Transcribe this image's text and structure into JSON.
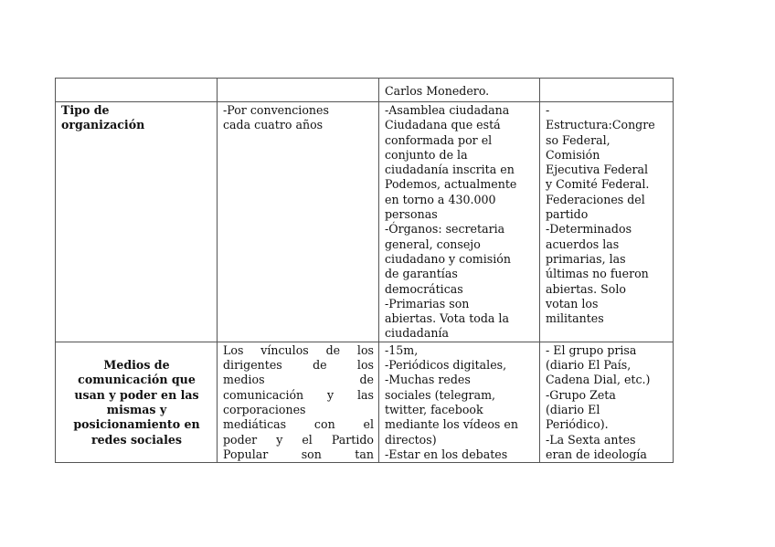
{
  "table": {
    "header_row": [
      "",
      "",
      "Carlos Monedero.",
      ""
    ],
    "rows": [
      {
        "label": [
          "Tipo de",
          "organización"
        ],
        "cells": [
          [
            "-Por convenciones",
            "cada cuatro años"
          ],
          [
            "-Asamblea ciudadana",
            "Ciudadana que está",
            "conformada por el",
            "conjunto de la",
            "ciudadanía inscrita en",
            "Podemos, actualmente",
            "en torno a 430.000",
            "personas",
            "-Órganos: secretaria",
            "general, consejo",
            "ciudadano y comisión",
            "de garantías",
            "democráticas",
            "-Primarias son",
            "abiertas. Vota toda la",
            "ciudadanía"
          ],
          [
            "-",
            "Estructura:Congre",
            "so Federal,",
            "Comisión",
            "Ejecutiva Federal",
            "y Comité Federal.",
            "Federaciones del",
            "partido",
            "-Determinados",
            "acuerdos las",
            "primarias, las",
            "últimas no fueron",
            "abiertas. Solo",
            "votan los",
            "militantes"
          ]
        ]
      },
      {
        "label": [
          "Medios de",
          "comunicación que",
          "usan y poder en las",
          "mismas  y",
          "posicionamiento en",
          "redes sociales"
        ],
        "cells": [
          [
            "Los vínculos de los",
            "dirigentes de los",
            "medios de",
            "comunicación y las",
            "corporaciones",
            "mediáticas con el",
            "poder y el Partido",
            "Popular son tan"
          ],
          [
            "-15m,",
            "-Periódicos digitales,",
            "-Muchas redes",
            "sociales (telegram,",
            "twitter, facebook",
            "mediante los vídeos en",
            "directos)",
            "-Estar en los debates"
          ],
          [
            "- El grupo prisa",
            "(diario El País,",
            "Cadena Dial,  etc.)",
            "-Grupo Zeta",
            "(diario El",
            "Periódico).",
            "-La Sexta antes",
            "eran de ideología"
          ]
        ]
      }
    ]
  }
}
